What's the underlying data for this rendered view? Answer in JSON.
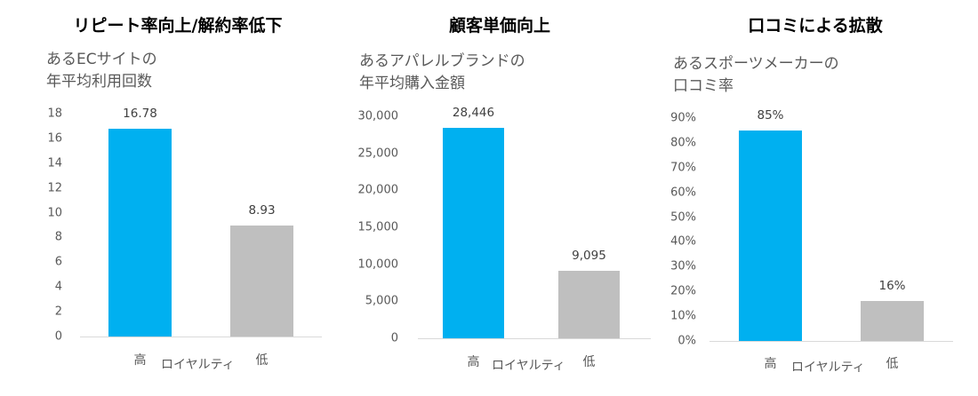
{
  "chart_data": [
    {
      "type": "bar",
      "title": "リピート率向上/解約率低下",
      "subtitle_lines": [
        "あるECサイトの",
        "年平均利用回数"
      ],
      "categories": [
        "高",
        "低"
      ],
      "values": [
        16.78,
        8.93
      ],
      "data_labels": [
        "16.78",
        "8.93"
      ],
      "xlabel": "ロイヤルティ",
      "ylim": [
        0,
        18
      ],
      "yticks": [
        0,
        2,
        4,
        6,
        8,
        10,
        12,
        14,
        16,
        18
      ],
      "ytick_labels": [
        "0",
        "2",
        "4",
        "6",
        "8",
        "10",
        "12",
        "14",
        "16",
        "18"
      ],
      "colors": [
        "#00b0f0",
        "#bfbfbf"
      ]
    },
    {
      "type": "bar",
      "title": "顧客単価向上",
      "subtitle_lines": [
        "あるアパレルブランドの",
        "年平均購入金額"
      ],
      "categories": [
        "高",
        "低"
      ],
      "values": [
        28446,
        9095
      ],
      "data_labels": [
        "28,446",
        "9,095"
      ],
      "xlabel": "ロイヤルティ",
      "ylim": [
        0,
        30000
      ],
      "yticks": [
        0,
        5000,
        10000,
        15000,
        20000,
        25000,
        30000
      ],
      "ytick_labels": [
        "0",
        "5,000",
        "10,000",
        "15,000",
        "20,000",
        "25,000",
        "30,000"
      ],
      "colors": [
        "#00b0f0",
        "#bfbfbf"
      ]
    },
    {
      "type": "bar",
      "title": "口コミによる拡散",
      "subtitle_lines": [
        "あるスポーツメーカーの",
        "口コミ率"
      ],
      "categories": [
        "高",
        "低"
      ],
      "values": [
        85,
        16
      ],
      "data_labels": [
        "85%",
        "16%"
      ],
      "xlabel": "ロイヤルティ",
      "ylim": [
        0,
        90
      ],
      "yticks": [
        0,
        10,
        20,
        30,
        40,
        50,
        60,
        70,
        80,
        90
      ],
      "ytick_labels": [
        "0%",
        "10%",
        "20%",
        "30%",
        "40%",
        "50%",
        "60%",
        "70%",
        "80%",
        "90%"
      ],
      "colors": [
        "#00b0f0",
        "#bfbfbf"
      ]
    }
  ]
}
